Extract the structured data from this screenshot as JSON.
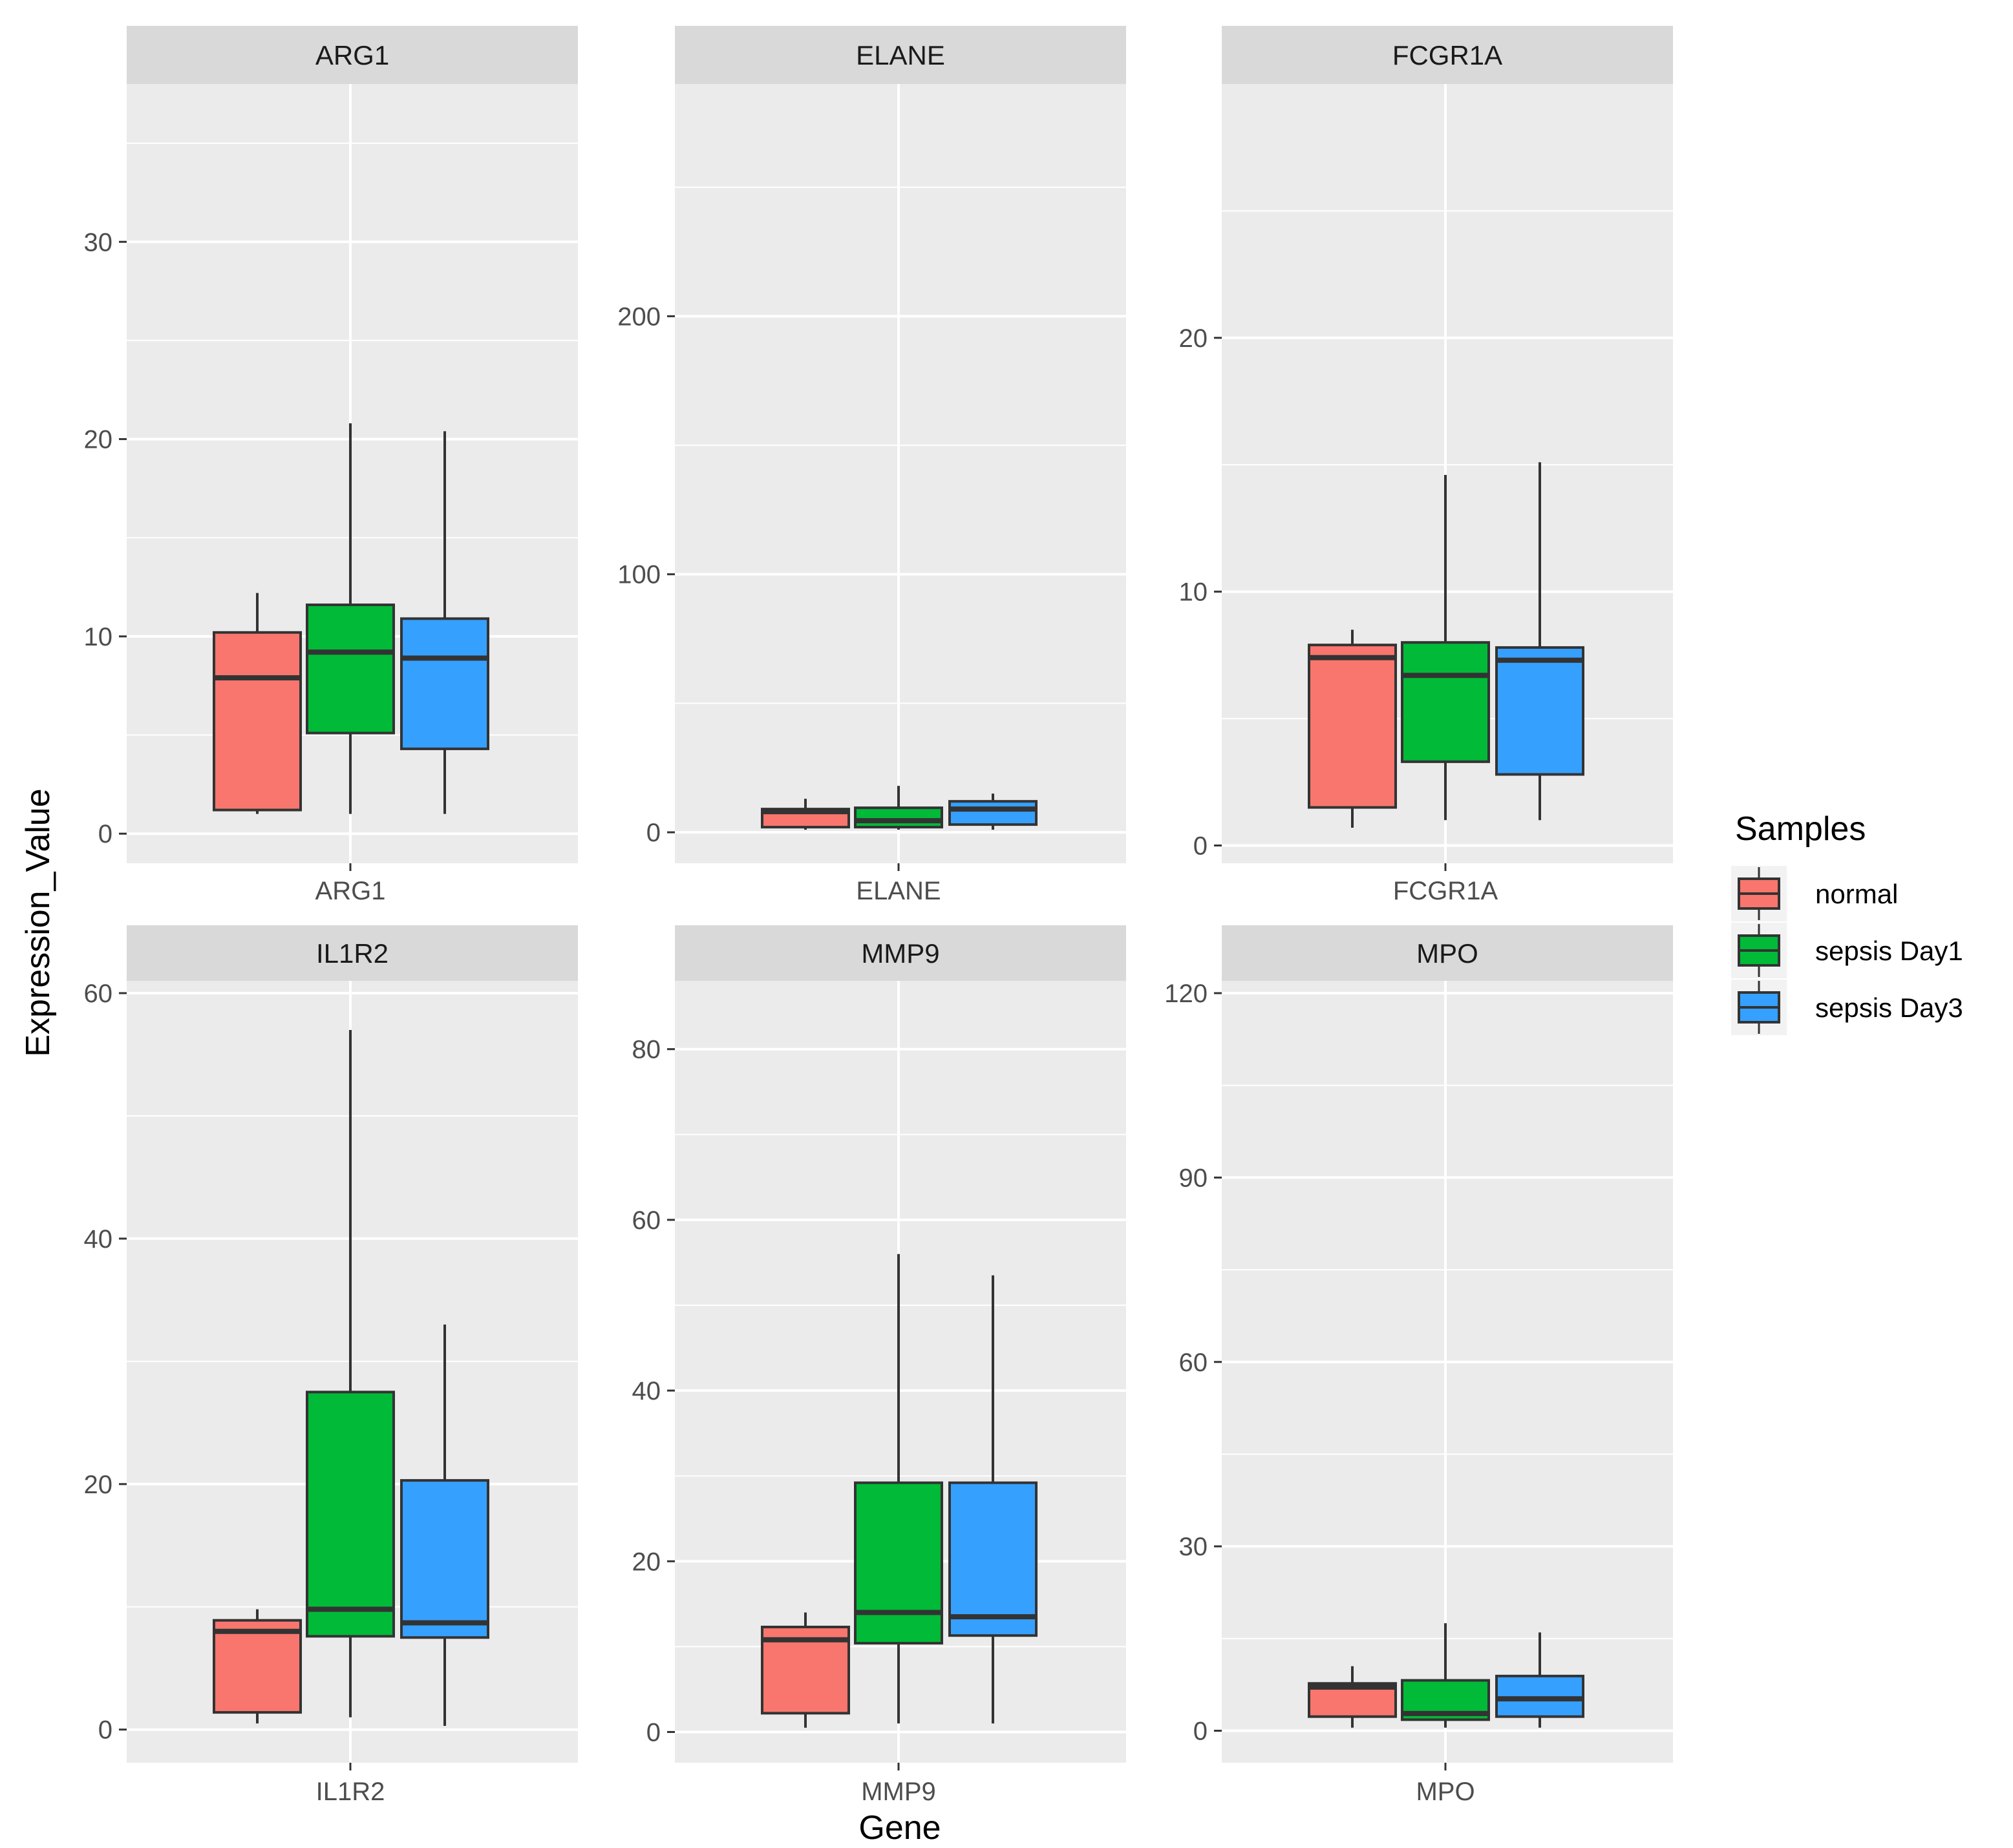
{
  "chart_data": {
    "type": "box",
    "x_label": "Gene",
    "y_label": "Expression_Value",
    "legend": {
      "title": "Samples",
      "position": "right",
      "entries": [
        {
          "name": "normal",
          "color": "#F8766D"
        },
        {
          "name": "sepsis Day1",
          "color": "#00BA38"
        },
        {
          "name": "sepsis Day3",
          "color": "#36A0FF"
        }
      ]
    },
    "panels": [
      {
        "gene": "ARG1",
        "ylim": [
          -1.5,
          38.0
        ],
        "ticks": [
          0,
          10,
          20,
          30
        ],
        "boxes": [
          {
            "group": "normal",
            "min": 1.0,
            "q1": 1.2,
            "median": 7.9,
            "q3": 10.2,
            "max": 12.2
          },
          {
            "group": "sepsis Day1",
            "min": 1.0,
            "q1": 5.1,
            "median": 9.2,
            "q3": 11.6,
            "max": 20.8
          },
          {
            "group": "sepsis Day3",
            "min": 1.0,
            "q1": 4.3,
            "median": 8.9,
            "q3": 10.9,
            "max": 20.4
          }
        ]
      },
      {
        "gene": "ELANE",
        "ylim": [
          -12.0,
          290.0
        ],
        "ticks": [
          0,
          100,
          200
        ],
        "boxes": [
          {
            "group": "normal",
            "min": 1.0,
            "q1": 2.0,
            "median": 8.0,
            "q3": 9.0,
            "max": 13.0
          },
          {
            "group": "sepsis Day1",
            "min": 1.0,
            "q1": 2.0,
            "median": 4.5,
            "q3": 9.5,
            "max": 18.0
          },
          {
            "group": "sepsis Day3",
            "min": 1.0,
            "q1": 3.0,
            "median": 9.0,
            "q3": 12.0,
            "max": 15.0
          }
        ]
      },
      {
        "gene": "FCGR1A",
        "ylim": [
          -0.7,
          30.0
        ],
        "ticks": [
          0,
          10,
          20
        ],
        "boxes": [
          {
            "group": "normal",
            "min": 0.7,
            "q1": 1.5,
            "median": 7.4,
            "q3": 7.9,
            "max": 8.5
          },
          {
            "group": "sepsis Day1",
            "min": 1.0,
            "q1": 3.3,
            "median": 6.7,
            "q3": 8.0,
            "max": 14.6
          },
          {
            "group": "sepsis Day3",
            "min": 1.0,
            "q1": 2.8,
            "median": 7.3,
            "q3": 7.8,
            "max": 15.1
          }
        ]
      },
      {
        "gene": "IL1R2",
        "ylim": [
          -2.7,
          61.0
        ],
        "ticks": [
          0,
          20,
          40,
          60
        ],
        "boxes": [
          {
            "group": "normal",
            "min": 0.5,
            "q1": 1.4,
            "median": 8.0,
            "q3": 8.9,
            "max": 9.8
          },
          {
            "group": "sepsis Day1",
            "min": 1.0,
            "q1": 7.6,
            "median": 9.8,
            "q3": 27.5,
            "max": 57.0
          },
          {
            "group": "sepsis Day3",
            "min": 0.3,
            "q1": 7.5,
            "median": 8.7,
            "q3": 20.3,
            "max": 33.0
          }
        ]
      },
      {
        "gene": "MMP9",
        "ylim": [
          -3.6,
          88.0
        ],
        "ticks": [
          0,
          20,
          40,
          60,
          80
        ],
        "boxes": [
          {
            "group": "normal",
            "min": 0.5,
            "q1": 2.2,
            "median": 10.8,
            "q3": 12.3,
            "max": 14.0
          },
          {
            "group": "sepsis Day1",
            "min": 1.0,
            "q1": 10.4,
            "median": 14.0,
            "q3": 29.2,
            "max": 56.0
          },
          {
            "group": "sepsis Day3",
            "min": 1.0,
            "q1": 11.3,
            "median": 13.5,
            "q3": 29.2,
            "max": 53.5
          }
        ]
      },
      {
        "gene": "MPO",
        "ylim": [
          -5.2,
          122.0
        ],
        "ticks": [
          0,
          30,
          60,
          90,
          120
        ],
        "boxes": [
          {
            "group": "normal",
            "min": 0.5,
            "q1": 2.3,
            "median": 7.1,
            "q3": 7.7,
            "max": 10.5
          },
          {
            "group": "sepsis Day1",
            "min": 0.5,
            "q1": 1.8,
            "median": 2.8,
            "q3": 8.2,
            "max": 17.5
          },
          {
            "group": "sepsis Day3",
            "min": 0.5,
            "q1": 2.3,
            "median": 5.2,
            "q3": 8.9,
            "max": 16.0
          }
        ]
      }
    ]
  }
}
